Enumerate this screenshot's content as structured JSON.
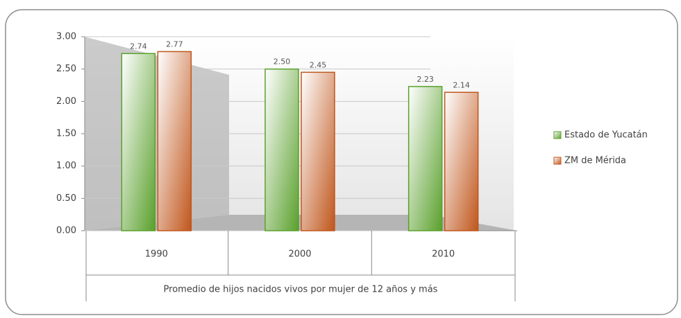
{
  "chart_data": {
    "type": "bar",
    "x_label": "Promedio de hijos nacidos vivos por mujer de 12 años y más",
    "categories": [
      "1990",
      "2000",
      "2010"
    ],
    "series": [
      {
        "name": "Estado de Yucatán",
        "color": "#5aa02c",
        "values": [
          2.74,
          2.5,
          2.23
        ],
        "value_labels": [
          "2.74",
          "2.50",
          "2.23"
        ]
      },
      {
        "name": "ZM de Mérida",
        "color": "#c0561c",
        "values": [
          2.77,
          2.45,
          2.14
        ],
        "value_labels": [
          "2.77",
          "2.45",
          "2.14"
        ]
      }
    ],
    "ylim": [
      0,
      3
    ],
    "yticks": [
      {
        "value": 0,
        "label": "0.00"
      },
      {
        "value": 0.5,
        "label": "0.50"
      },
      {
        "value": 1,
        "label": "1.00"
      },
      {
        "value": 1.5,
        "label": "1.50"
      },
      {
        "value": 2,
        "label": "2.00"
      },
      {
        "value": 2.5,
        "label": "2.50"
      },
      {
        "value": 3,
        "label": "3.00"
      }
    ],
    "grid": true,
    "legend": "right"
  }
}
